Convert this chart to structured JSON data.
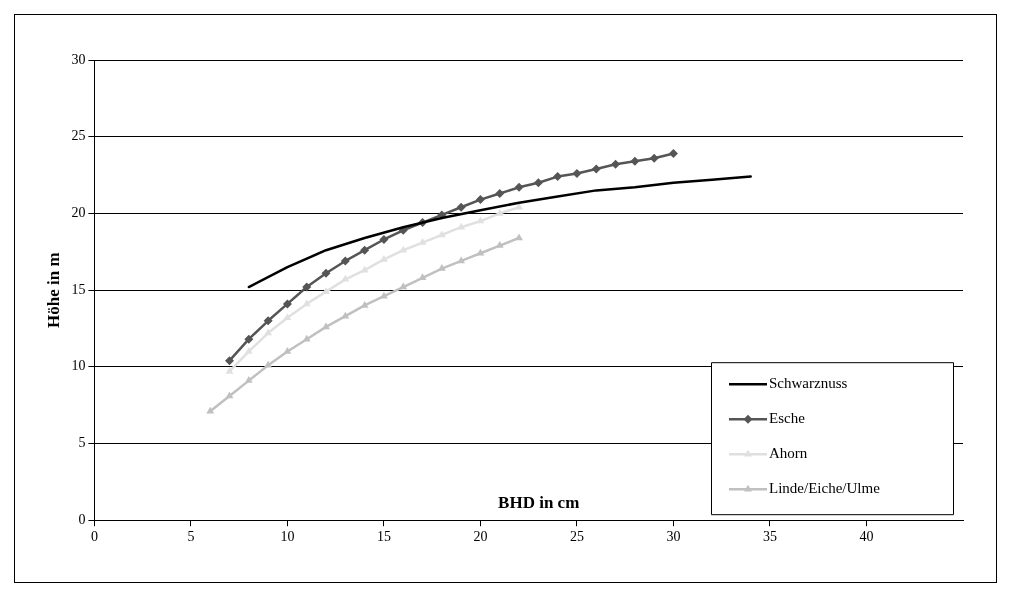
{
  "chart_data": {
    "type": "line",
    "xlabel": "BHD in cm",
    "ylabel": "Höhe in m",
    "xlim": [
      0,
      45
    ],
    "xticks": [
      0,
      5,
      10,
      15,
      20,
      25,
      30,
      35,
      40
    ],
    "ylim": [
      0,
      30
    ],
    "yticks": [
      0,
      5,
      10,
      15,
      20,
      25,
      30
    ],
    "grid": "y",
    "legend": "bottom right",
    "line_style": "solid",
    "series": [
      {
        "name": "Schwarznuss",
        "color": "#000000",
        "marker": "none",
        "x": [
          8,
          10,
          12,
          14,
          16,
          18,
          20,
          22,
          24,
          26,
          28,
          30,
          32,
          34
        ],
        "values": [
          15.2,
          16.5,
          17.6,
          18.4,
          19.1,
          19.7,
          20.2,
          20.7,
          21.1,
          21.5,
          21.7,
          22.0,
          22.2,
          22.4
        ]
      },
      {
        "name": "Esche",
        "color": "#555555",
        "marker": "diamond",
        "x": [
          7,
          8,
          9,
          10,
          11,
          12,
          13,
          14,
          15,
          16,
          17,
          18,
          19,
          20,
          21,
          22,
          23,
          24,
          25,
          26,
          27,
          28,
          29,
          30
        ],
        "values": [
          10.4,
          11.8,
          13.0,
          14.1,
          15.2,
          16.1,
          16.9,
          17.6,
          18.3,
          18.9,
          19.4,
          19.9,
          20.4,
          20.9,
          21.3,
          21.7,
          22.0,
          22.4,
          22.6,
          22.9,
          23.2,
          23.4,
          23.6,
          23.9
        ]
      },
      {
        "name": "Ahorn",
        "color": "#e0e0e0",
        "marker": "triangle",
        "x": [
          7,
          8,
          9,
          10,
          11,
          12,
          13,
          14,
          15,
          16,
          17,
          18,
          19,
          20,
          21,
          22
        ],
        "values": [
          9.7,
          11.0,
          12.2,
          13.2,
          14.1,
          14.9,
          15.7,
          16.3,
          17.0,
          17.6,
          18.1,
          18.6,
          19.1,
          19.5,
          20.0,
          20.4
        ]
      },
      {
        "name": "Linde/Eiche/Ulme",
        "color": "#c0c0c0",
        "marker": "triangle",
        "x": [
          6,
          7,
          8,
          9,
          10,
          11,
          12,
          13,
          14,
          15,
          16,
          17,
          18,
          19,
          20,
          21,
          22
        ],
        "values": [
          7.1,
          8.1,
          9.1,
          10.1,
          11.0,
          11.8,
          12.6,
          13.3,
          14.0,
          14.6,
          15.2,
          15.8,
          16.4,
          16.9,
          17.4,
          17.9,
          18.4
        ]
      }
    ]
  }
}
